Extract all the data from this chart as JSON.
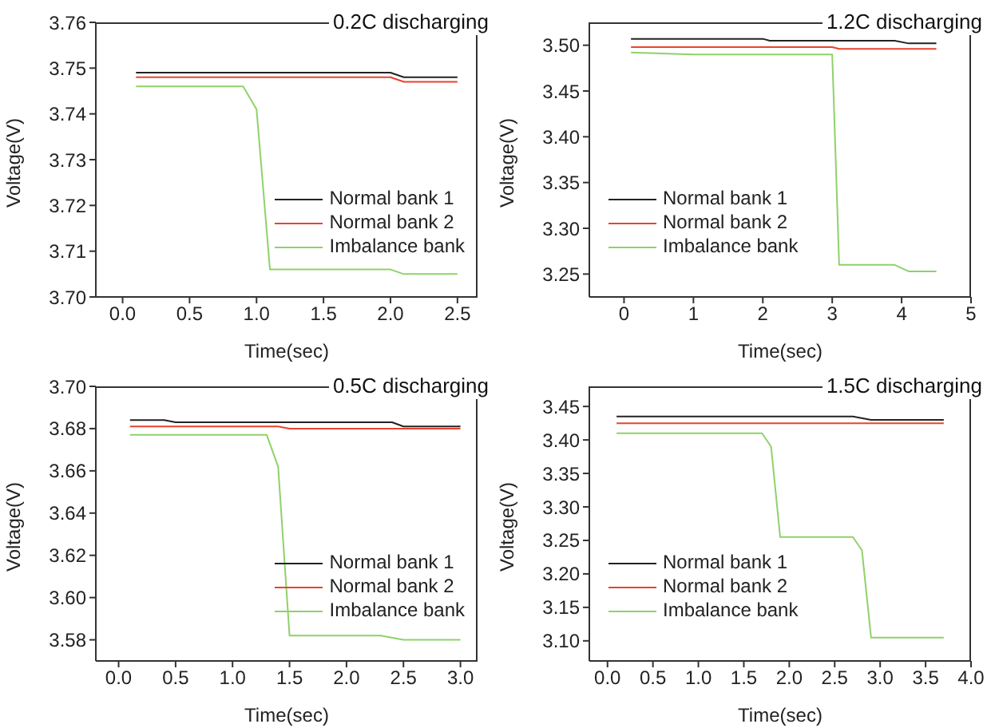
{
  "chart_data": [
    {
      "type": "line",
      "title": "0.2C discharging",
      "xlabel": "Time(sec)",
      "ylabel": "Voltage(V)",
      "xlim": [
        -0.2,
        2.65
      ],
      "xticks": [
        {
          "value": 0,
          "label": "0.0"
        },
        0.5,
        {
          "value": 1,
          "label": "1.0"
        },
        1.5,
        {
          "value": 2,
          "label": "2.0"
        },
        2.5
      ],
      "ylim": [
        3.7,
        3.76
      ],
      "yticks": [
        {
          "value": 3.7,
          "label": "3.70"
        },
        3.71,
        3.72,
        3.73,
        3.74,
        3.75,
        {
          "value": 3.76,
          "label": "3.76"
        }
      ],
      "legend": "bottom right",
      "grid": false,
      "marker": "none",
      "line_style": "solid",
      "series": [
        {
          "name": "Normal bank 1",
          "color": "#222222",
          "x": [
            0.1,
            2.0,
            2.1,
            2.5
          ],
          "values": [
            3.749,
            3.749,
            3.748,
            3.748
          ]
        },
        {
          "name": "Normal bank 2",
          "color": "#e8432f",
          "x": [
            0.1,
            2.0,
            2.1,
            2.5
          ],
          "values": [
            3.748,
            3.748,
            3.747,
            3.747
          ]
        },
        {
          "name": "Imbalance bank",
          "color": "#8fd16a",
          "x": [
            0.1,
            0.9,
            1.0,
            1.1,
            2.0,
            2.1,
            2.5
          ],
          "values": [
            3.746,
            3.746,
            3.741,
            3.706,
            3.706,
            3.705,
            3.705
          ]
        }
      ]
    },
    {
      "type": "line",
      "title": "1.2C discharging",
      "xlabel": "Time(sec)",
      "ylabel": "Voltage(V)",
      "xlim": [
        -0.5,
        5
      ],
      "xticks": [
        0,
        1,
        2,
        3,
        4,
        5
      ],
      "ylim": [
        3.225,
        3.525
      ],
      "yticks": [
        3.25,
        {
          "value": 3.3,
          "label": "3.30"
        },
        3.35,
        {
          "value": 3.4,
          "label": "3.40"
        },
        3.45,
        {
          "value": 3.5,
          "label": "3.50"
        }
      ],
      "legend": "bottom left",
      "grid": false,
      "marker": "none",
      "line_style": "solid",
      "series": [
        {
          "name": "Normal bank 1",
          "color": "#222222",
          "x": [
            0.1,
            2.0,
            2.1,
            3.9,
            4.1,
            4.5
          ],
          "values": [
            3.507,
            3.507,
            3.505,
            3.505,
            3.502,
            3.502
          ]
        },
        {
          "name": "Normal bank 2",
          "color": "#e8432f",
          "x": [
            0.1,
            3.0,
            3.1,
            4.5
          ],
          "values": [
            3.498,
            3.498,
            3.496,
            3.496
          ]
        },
        {
          "name": "Imbalance bank",
          "color": "#8fd16a",
          "x": [
            0.1,
            1.0,
            3.0,
            3.1,
            3.9,
            4.1,
            4.5
          ],
          "values": [
            3.492,
            3.49,
            3.49,
            3.26,
            3.26,
            3.253,
            3.253
          ]
        }
      ]
    },
    {
      "type": "line",
      "title": "0.5C discharging",
      "xlabel": "Time(sec)",
      "ylabel": "Voltage(V)",
      "xlim": [
        -0.2,
        3.15
      ],
      "xticks": [
        {
          "value": 0,
          "label": "0.0"
        },
        0.5,
        {
          "value": 1,
          "label": "1.0"
        },
        1.5,
        {
          "value": 2,
          "label": "2.0"
        },
        2.5,
        {
          "value": 3,
          "label": "3.0"
        }
      ],
      "ylim": [
        3.57,
        3.7
      ],
      "yticks": [
        3.58,
        {
          "value": 3.6,
          "label": "3.60"
        },
        3.62,
        3.64,
        3.66,
        3.68,
        {
          "value": 3.7,
          "label": "3.70"
        }
      ],
      "legend": "bottom right",
      "grid": false,
      "marker": "none",
      "line_style": "solid",
      "series": [
        {
          "name": "Normal bank 1",
          "color": "#222222",
          "x": [
            0.1,
            0.4,
            0.5,
            2.4,
            2.5,
            3.0
          ],
          "values": [
            3.684,
            3.684,
            3.683,
            3.683,
            3.681,
            3.681
          ]
        },
        {
          "name": "Normal bank 2",
          "color": "#e8432f",
          "x": [
            0.1,
            1.4,
            1.5,
            3.0
          ],
          "values": [
            3.681,
            3.681,
            3.68,
            3.68
          ]
        },
        {
          "name": "Imbalance bank",
          "color": "#8fd16a",
          "x": [
            0.1,
            1.3,
            1.4,
            1.5,
            2.3,
            2.5,
            3.0
          ],
          "values": [
            3.677,
            3.677,
            3.662,
            3.582,
            3.582,
            3.58,
            3.58
          ]
        }
      ]
    },
    {
      "type": "line",
      "title": "1.5C discharging",
      "xlabel": "Time(sec)",
      "ylabel": "Voltage(V)",
      "xlim": [
        -0.2,
        4.0
      ],
      "xticks": [
        {
          "value": 0,
          "label": "0.0"
        },
        0.5,
        {
          "value": 1,
          "label": "1.0"
        },
        1.5,
        {
          "value": 2,
          "label": "2.0"
        },
        2.5,
        {
          "value": 3,
          "label": "3.0"
        },
        3.5,
        {
          "value": 4,
          "label": "4.0"
        }
      ],
      "ylim": [
        3.07,
        3.48
      ],
      "yticks": [
        {
          "value": 3.1,
          "label": "3.10"
        },
        3.15,
        {
          "value": 3.2,
          "label": "3.20"
        },
        3.25,
        {
          "value": 3.3,
          "label": "3.30"
        },
        3.35,
        {
          "value": 3.4,
          "label": "3.40"
        },
        3.45
      ],
      "legend": "bottom left",
      "grid": false,
      "marker": "none",
      "line_style": "solid",
      "series": [
        {
          "name": "Normal bank 1",
          "color": "#222222",
          "x": [
            0.1,
            2.7,
            2.9,
            3.7
          ],
          "values": [
            3.435,
            3.435,
            3.43,
            3.43
          ]
        },
        {
          "name": "Normal bank 2",
          "color": "#e8432f",
          "x": [
            0.1,
            3.7
          ],
          "values": [
            3.425,
            3.425
          ]
        },
        {
          "name": "Imbalance bank",
          "color": "#8fd16a",
          "x": [
            0.1,
            1.7,
            1.8,
            1.9,
            2.7,
            2.8,
            2.9,
            3.7
          ],
          "values": [
            3.41,
            3.41,
            3.39,
            3.255,
            3.255,
            3.235,
            3.105,
            3.105
          ]
        }
      ]
    }
  ]
}
